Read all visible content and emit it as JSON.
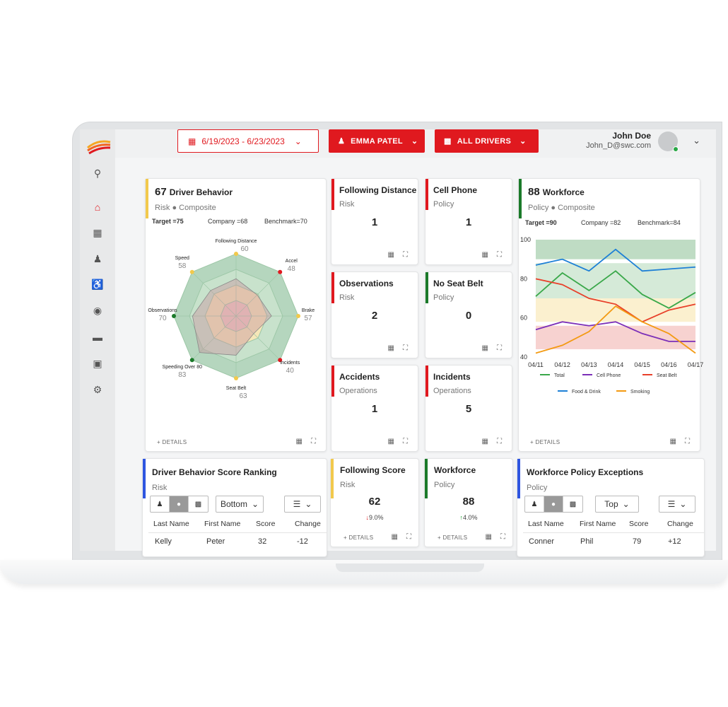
{
  "colors": {
    "accent": "#e0191f",
    "risk": "#f2c94c",
    "policy": "#1b7a2a",
    "red_bar": "#e0191f",
    "blue_bar": "#2e55e0"
  },
  "topbar": {
    "date_range": "6/19/2023 - 6/23/2023",
    "person": "EMMA PATEL",
    "drivers": "ALL DRIVERS",
    "user_name": "John Doe",
    "user_email": "John_D@swc.com"
  },
  "sidebar": {
    "items": [
      "search-icon",
      "home-icon",
      "grid-icon",
      "team-icon",
      "accessible-icon",
      "location-icon",
      "document-icon",
      "archive-icon",
      "gear-icon"
    ]
  },
  "driver_behavior": {
    "score": "67",
    "title": "Driver Behavior",
    "type": "Risk",
    "sub": "Composite",
    "target": "Target =75",
    "company": "Company =68",
    "benchmark": "Benchmark=70",
    "details": "DETAILS"
  },
  "workforce": {
    "score": "88",
    "title": "Workforce",
    "type": "Policy",
    "sub": "Composite",
    "target": "Target =90",
    "company": "Company =82",
    "benchmark": "Benchmark=84",
    "details": "DETAILS"
  },
  "tiles": [
    {
      "title": "Following Distance",
      "sub": "Risk",
      "value": "1"
    },
    {
      "title": "Cell Phone",
      "sub": "Policy",
      "value": "1"
    },
    {
      "title": "Observations",
      "sub": "Risk",
      "value": "2"
    },
    {
      "title": "No Seat Belt",
      "sub": "Policy",
      "value": "0"
    },
    {
      "title": "Accidents",
      "sub": "Operations",
      "value": "1"
    },
    {
      "title": "Incidents",
      "sub": "Operations",
      "value": "5"
    }
  ],
  "following_score": {
    "title": "Following Score",
    "sub": "Risk",
    "value": "62",
    "change": "9.0%",
    "details": "DETAILS"
  },
  "workforce_small": {
    "title": "Workforce",
    "sub": "Policy",
    "value": "88",
    "change": "4.0%",
    "details": "DETAILS"
  },
  "ranking": {
    "title": "Driver Behavior Score Ranking",
    "sub": "Risk",
    "select": "Bottom",
    "headers": [
      "Last Name",
      "First Name",
      "Score",
      "Change"
    ],
    "row": [
      "Kelly",
      "Peter",
      "32",
      "-12"
    ]
  },
  "exceptions": {
    "title": "Workforce Policy Exceptions",
    "sub": "Policy",
    "select": "Top",
    "headers": [
      "Last Name",
      "First Name",
      "Score",
      "Change"
    ],
    "row": [
      "Conner",
      "Phil",
      "79",
      "+12"
    ]
  },
  "chart_data": [
    {
      "type": "radar",
      "axes": [
        "Following Distance",
        "Accel",
        "Brake",
        "Incidents",
        "Seat Belt",
        "Speeding Over 80",
        "Observations",
        "Speed"
      ],
      "values": [
        60,
        48,
        57,
        40,
        63,
        83,
        70,
        58
      ]
    },
    {
      "type": "line",
      "x": [
        "04/11",
        "04/12",
        "04/13",
        "04/14",
        "04/15",
        "04/16",
        "04/17"
      ],
      "ylim": [
        40,
        100
      ],
      "yticks": [
        40,
        60,
        80,
        100
      ],
      "series": [
        {
          "name": "Total",
          "color": "#3aa84a",
          "values": [
            71,
            83,
            74,
            84,
            72,
            65,
            73
          ]
        },
        {
          "name": "Cell Phone",
          "color": "#7b2fb8",
          "values": [
            54,
            58,
            56,
            58,
            52,
            48,
            48
          ]
        },
        {
          "name": "Seat Belt",
          "color": "#e8402a",
          "values": [
            80,
            77,
            70,
            67,
            58,
            64,
            67
          ]
        },
        {
          "name": "Food & Drink",
          "color": "#1e80d6",
          "values": [
            87,
            90,
            84,
            95,
            84,
            85,
            86
          ]
        },
        {
          "name": "Smoking",
          "color": "#f39a12",
          "values": [
            42,
            46,
            53,
            66,
            58,
            52,
            42
          ]
        }
      ]
    }
  ]
}
